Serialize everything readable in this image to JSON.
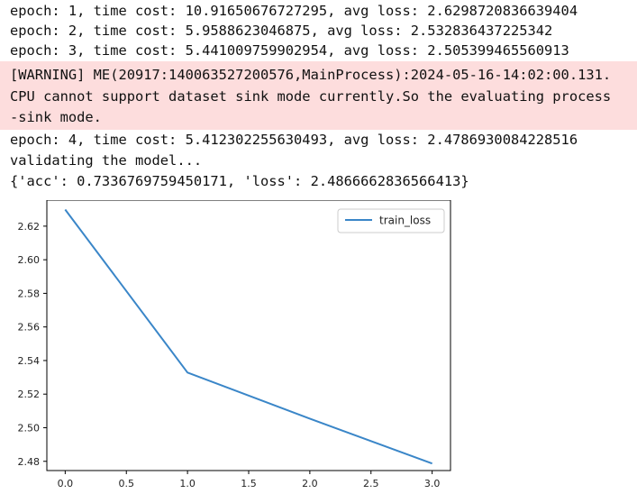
{
  "output": {
    "lines_before": [
      "epoch: 1, time cost: 10.91650676727295, avg loss: 2.6298720836639404",
      "epoch: 2, time cost: 5.9588623046875, avg loss: 2.532836437225342",
      "epoch: 3, time cost: 5.441009759902954, avg loss: 2.505399465560913"
    ],
    "warning_lines": [
      "[WARNING] ME(20917:140063527200576,MainProcess):2024-05-16-14:02:00.131.",
      "CPU cannot support dataset sink mode currently.So the evaluating process",
      "-sink mode."
    ],
    "lines_after": [
      "epoch: 4, time cost: 5.412302255630493, avg loss: 2.4786930084228516",
      "validating the model...",
      "{'acc': 0.7336769759450171, 'loss': 2.4866662836566413}"
    ]
  },
  "colors": {
    "warning_background": "#fddddd",
    "series_line": "#3a86c8",
    "axes": "#000000"
  },
  "chart_data": {
    "type": "line",
    "title": "",
    "xlabel": "",
    "ylabel": "",
    "x": [
      0,
      1,
      2,
      3
    ],
    "series": [
      {
        "name": "train_loss",
        "values": [
          2.6298720836639404,
          2.532836437225342,
          2.505399465560913,
          2.4786930084228516
        ]
      }
    ],
    "xlim": [
      -0.15,
      3.15
    ],
    "ylim": [
      2.4745,
      2.6355
    ],
    "xticks": [
      0.0,
      0.5,
      1.0,
      1.5,
      2.0,
      2.5,
      3.0
    ],
    "xtick_labels": [
      "0.0",
      "0.5",
      "1.0",
      "1.5",
      "2.0",
      "2.5",
      "3.0"
    ],
    "yticks": [
      2.48,
      2.5,
      2.52,
      2.54,
      2.56,
      2.58,
      2.6,
      2.62
    ],
    "ytick_labels": [
      "2.48",
      "2.50",
      "2.52",
      "2.54",
      "2.56",
      "2.58",
      "2.60",
      "2.62"
    ],
    "grid": false,
    "legend_position": "top-right"
  }
}
